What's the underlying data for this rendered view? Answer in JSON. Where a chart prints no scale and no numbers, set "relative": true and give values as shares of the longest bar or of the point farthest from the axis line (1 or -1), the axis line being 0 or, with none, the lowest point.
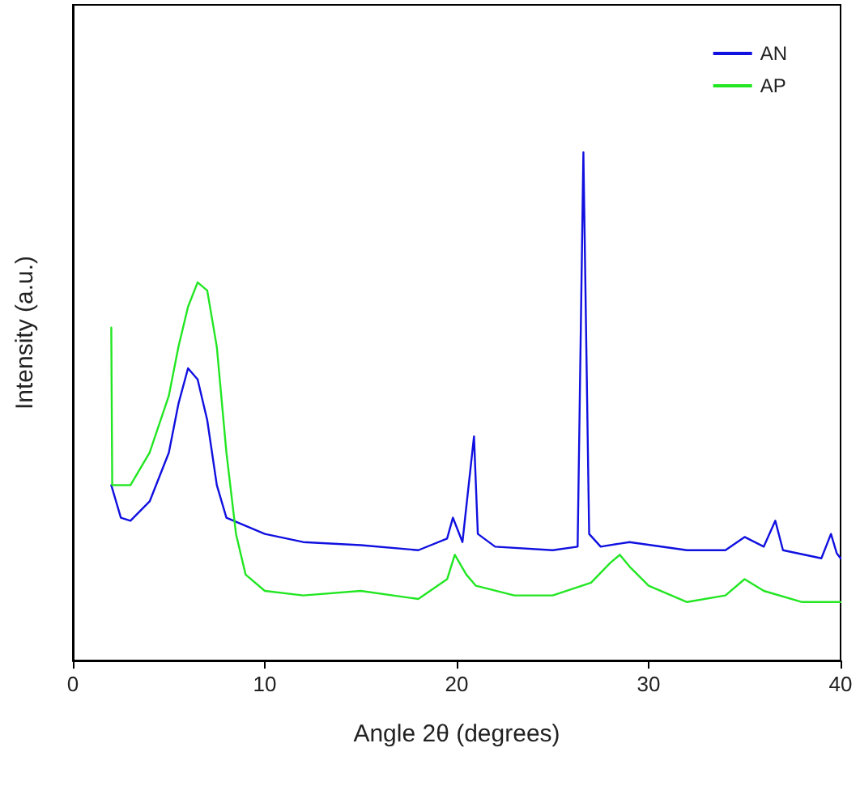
{
  "chart_data": {
    "type": "line",
    "xlabel": "Angle 2θ (degrees)",
    "ylabel": "Intensity (a.u.)",
    "relative": true,
    "xlim": [
      0,
      40
    ],
    "xticks": [
      0,
      10,
      20,
      30,
      40
    ],
    "legend": "top right",
    "grid": false,
    "marker": "none",
    "line_style": "solid",
    "series": [
      {
        "name": "AN",
        "color": "#1010e0",
        "x": [
          2,
          2.5,
          3,
          4,
          5,
          5.5,
          6,
          6.5,
          7,
          7.5,
          8,
          9,
          10,
          12,
          15,
          18,
          19.5,
          19.8,
          20.3,
          20.9,
          21.1,
          22,
          25,
          26.3,
          26.6,
          26.9,
          27.5,
          29,
          32,
          34,
          35,
          36,
          36.6,
          37,
          39,
          39.5,
          39.8,
          40
        ],
        "values": [
          0.345,
          0.281,
          0.275,
          0.313,
          0.409,
          0.505,
          0.575,
          0.553,
          0.473,
          0.345,
          0.281,
          0.265,
          0.249,
          0.233,
          0.227,
          0.217,
          0.24,
          0.281,
          0.233,
          0.441,
          0.249,
          0.224,
          0.217,
          0.224,
          1,
          0.249,
          0.224,
          0.233,
          0.217,
          0.217,
          0.243,
          0.224,
          0.275,
          0.217,
          0.201,
          0.249,
          0.211,
          0.201
        ]
      },
      {
        "name": "AP",
        "color": "#22e622",
        "x": [
          2,
          2.05,
          3,
          4,
          5,
          5.5,
          6,
          6.5,
          7,
          7.5,
          8,
          8.5,
          9,
          10,
          12,
          15,
          18,
          19.5,
          19.9,
          20.5,
          21,
          23,
          25,
          27,
          28,
          28.5,
          29,
          30,
          32,
          34,
          35,
          36,
          38,
          40
        ],
        "values": [
          0.655,
          0.345,
          0.345,
          0.409,
          0.521,
          0.617,
          0.696,
          0.744,
          0.728,
          0.617,
          0.409,
          0.249,
          0.169,
          0.137,
          0.128,
          0.137,
          0.121,
          0.16,
          0.208,
          0.169,
          0.147,
          0.128,
          0.128,
          0.153,
          0.192,
          0.208,
          0.185,
          0.147,
          0.115,
          0.128,
          0.16,
          0.137,
          0.115,
          0.115
        ]
      }
    ]
  }
}
